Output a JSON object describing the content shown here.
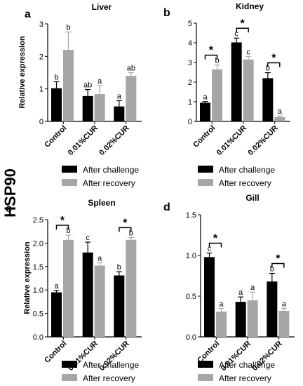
{
  "figure": {
    "side_label": "HSP90",
    "colors": {
      "challenge": "#000000",
      "recovery": "#a6a6a6"
    },
    "legend": [
      "After challenge",
      "After recovery"
    ]
  },
  "chart_data": [
    {
      "type": "bar",
      "panel": "a",
      "title": "Liver",
      "ylabel": "Relative expression",
      "categories": [
        "Control",
        "0.01%CUR",
        "0.02%CUR"
      ],
      "ylim": [
        0,
        3
      ],
      "yticks": [
        "0",
        "1",
        "2",
        "3"
      ],
      "series": [
        {
          "name": "After challenge",
          "values": [
            1.02,
            0.78,
            0.46
          ],
          "errors": [
            0.2,
            0.2,
            0.18
          ],
          "letters": [
            "b",
            "ab",
            "a"
          ]
        },
        {
          "name": "After recovery",
          "values": [
            2.2,
            0.84,
            1.4
          ],
          "errors": [
            0.55,
            0.26,
            0.1
          ],
          "letters": [
            "b",
            "a",
            "ab"
          ]
        }
      ],
      "significance": []
    },
    {
      "type": "bar",
      "panel": "b",
      "title": "Kidney",
      "ylabel": "",
      "categories": [
        "Control",
        "0.01%CUR",
        "0.02%CUR"
      ],
      "ylim": [
        0,
        5
      ],
      "yticks": [
        "0",
        "1",
        "2",
        "3",
        "4",
        "5"
      ],
      "series": [
        {
          "name": "After challenge",
          "values": [
            0.95,
            4.02,
            2.2
          ],
          "errors": [
            0.06,
            0.22,
            0.28
          ],
          "letters": [
            "a",
            "c",
            "b"
          ]
        },
        {
          "name": "After recovery",
          "values": [
            2.65,
            3.15,
            0.22
          ],
          "errors": [
            0.22,
            0.16,
            0.06
          ],
          "letters": [
            "b",
            "c",
            "a"
          ]
        }
      ],
      "significance": [
        "*",
        "*",
        "*"
      ]
    },
    {
      "type": "bar",
      "panel": "c",
      "title": "Spleen",
      "ylabel": "Relative expression",
      "categories": [
        "Control",
        "0.01%CUR",
        "0.02%CUR"
      ],
      "ylim": [
        0,
        2.5
      ],
      "yticks": [
        "0.0",
        "0.5",
        "1.0",
        "1.5",
        "2.0",
        "2.5"
      ],
      "series": [
        {
          "name": "After challenge",
          "values": [
            0.95,
            1.8,
            1.31
          ],
          "errors": [
            0.04,
            0.22,
            0.08
          ],
          "letters": [
            "a",
            "c",
            "b"
          ]
        },
        {
          "name": "After recovery",
          "values": [
            2.07,
            1.52,
            2.07
          ],
          "errors": [
            0.1,
            0.06,
            0.05
          ],
          "letters": [
            "b",
            "a",
            "b"
          ]
        }
      ],
      "significance": [
        "*",
        "",
        "*"
      ]
    },
    {
      "type": "bar",
      "panel": "d",
      "title": "Gill",
      "ylabel": "",
      "categories": [
        "Control",
        "0.01%CUR",
        "0.02%CUR"
      ],
      "ylim": [
        0,
        1.5
      ],
      "yticks": [
        "0.0",
        "0.5",
        "1.0",
        "1.5"
      ],
      "series": [
        {
          "name": "After challenge",
          "values": [
            0.98,
            0.43,
            0.68
          ],
          "errors": [
            0.05,
            0.06,
            0.1
          ],
          "letters": [
            "c",
            "a",
            "b"
          ]
        },
        {
          "name": "After recovery",
          "values": [
            0.31,
            0.45,
            0.32
          ],
          "errors": [
            0.04,
            0.1,
            0.03
          ],
          "letters": [
            "a",
            "a",
            "a"
          ]
        }
      ],
      "significance": [
        "*",
        "",
        "*"
      ]
    }
  ]
}
